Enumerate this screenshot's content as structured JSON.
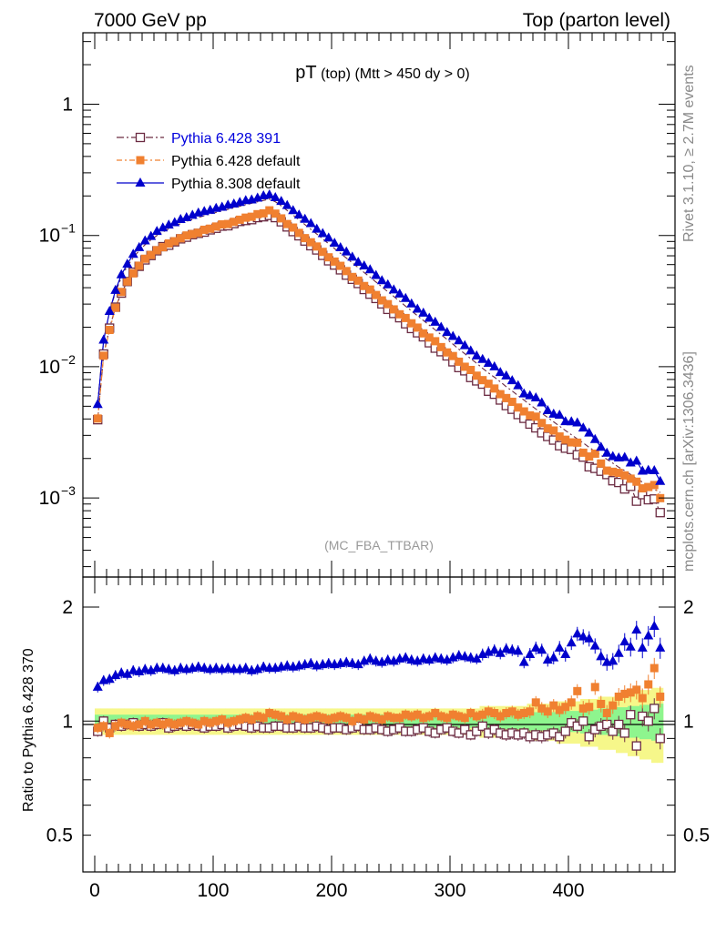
{
  "header": {
    "left": "7000 GeV pp",
    "right": "Top (parton level)",
    "side_rivet": "Rivet 3.1.10, ≥ 2.7M events",
    "side_mcplots": "mcplots.cern.ch [arXiv:1306.3436]"
  },
  "chart_data": [
    {
      "type": "line",
      "title_main": "pT",
      "title_sub": "(top)",
      "title_cut": "(Mtt > 450 dy > 0)",
      "watermark": "(MC_FBA_TTBAR)",
      "scale": "log",
      "xlim": [
        -10,
        490
      ],
      "ylim": [
        0.00025,
        3.5
      ],
      "yticks": [
        {
          "value": 1,
          "label": "1"
        },
        {
          "value": 0.1,
          "label": "10",
          "exp": "−1"
        },
        {
          "value": 0.01,
          "label": "10",
          "exp": "−2"
        },
        {
          "value": 0.001,
          "label": "10",
          "exp": "−3"
        }
      ],
      "legend": [
        {
          "name": "Pythia 6.428 391",
          "color": "#6b2b42",
          "text_color": "#0000dd",
          "marker": "open-square",
          "dash": "8,3,2,3"
        },
        {
          "name": "Pythia 6.428 default",
          "color": "#f08030",
          "text_color": "#000000",
          "marker": "filled-square",
          "dash": "6,3,2,3"
        },
        {
          "name": "Pythia 8.308 default",
          "color": "#0000cc",
          "text_color": "#000000",
          "marker": "filled-triangle",
          "dash": ""
        }
      ],
      "x": [
        2.5,
        7.5,
        12.5,
        17.5,
        22.5,
        27.5,
        32.5,
        37.5,
        42.5,
        47.5,
        52.5,
        57.5,
        62.5,
        67.5,
        72.5,
        77.5,
        82.5,
        87.5,
        92.5,
        97.5,
        102.5,
        107.5,
        112.5,
        117.5,
        122.5,
        127.5,
        132.5,
        137.5,
        142.5,
        147.5,
        152.5,
        157.5,
        162.5,
        167.5,
        172.5,
        177.5,
        182.5,
        187.5,
        192.5,
        197.5,
        202.5,
        207.5,
        212.5,
        217.5,
        222.5,
        227.5,
        232.5,
        237.5,
        242.5,
        247.5,
        252.5,
        257.5,
        262.5,
        267.5,
        272.5,
        277.5,
        282.5,
        287.5,
        292.5,
        297.5,
        302.5,
        307.5,
        312.5,
        317.5,
        322.5,
        327.5,
        332.5,
        337.5,
        342.5,
        347.5,
        352.5,
        357.5,
        362.5,
        367.5,
        372.5,
        377.5,
        382.5,
        387.5,
        392.5,
        397.5,
        402.5,
        407.5,
        412.5,
        417.5,
        422.5,
        427.5,
        432.5,
        437.5,
        442.5,
        447.5,
        452.5,
        457.5,
        462.5,
        467.5,
        472.5,
        477.5
      ],
      "reference_y": [
        0.0042,
        0.0125,
        0.0205,
        0.029,
        0.0375,
        0.0455,
        0.053,
        0.06,
        0.0665,
        0.0725,
        0.078,
        0.083,
        0.0878,
        0.0922,
        0.0962,
        0.1,
        0.1035,
        0.107,
        0.1105,
        0.1138,
        0.117,
        0.1202,
        0.1235,
        0.127,
        0.1305,
        0.134,
        0.1375,
        0.141,
        0.1445,
        0.148,
        0.141,
        0.131,
        0.121,
        0.1115,
        0.1025,
        0.0945,
        0.087,
        0.08,
        0.0735,
        0.0675,
        0.062,
        0.057,
        0.0525,
        0.0483,
        0.0444,
        0.0408,
        0.0376,
        0.0345,
        0.0317,
        0.0291,
        0.0268,
        0.0246,
        0.0226,
        0.0208,
        0.0191,
        0.0176,
        0.0162,
        0.0149,
        0.0137,
        0.0126,
        0.0116,
        0.0106,
        0.0098,
        0.009,
        0.0083,
        0.0076,
        0.007,
        0.0065,
        0.006,
        0.0055,
        0.0051,
        0.0047,
        0.00435,
        0.00402,
        0.00372,
        0.00345,
        0.0032,
        0.00297,
        0.00275,
        0.00255,
        0.00237,
        0.0022,
        0.00205,
        0.0019,
        0.00177,
        0.00165,
        0.00154,
        0.00144,
        0.00134,
        0.00126,
        0.00118,
        0.0011,
        0.00103,
        0.00097,
        0.00091,
        0.00086
      ],
      "series": [
        {
          "name": "Pythia 6.428 391",
          "ratio": [
            0.94,
            1.0,
            0.96,
            0.98,
            0.97,
            0.98,
            0.99,
            0.97,
            0.98,
            0.97,
            0.98,
            0.99,
            0.96,
            0.97,
            0.98,
            0.97,
            0.98,
            0.97,
            0.96,
            0.97,
            0.97,
            0.98,
            0.96,
            0.97,
            0.98,
            0.97,
            0.96,
            0.97,
            0.96,
            0.96,
            0.97,
            0.97,
            0.96,
            0.96,
            0.97,
            0.96,
            0.96,
            0.97,
            0.96,
            0.95,
            0.96,
            0.96,
            0.95,
            0.96,
            0.97,
            0.95,
            0.95,
            0.96,
            0.95,
            0.94,
            0.95,
            0.96,
            0.94,
            0.94,
            0.95,
            0.96,
            0.94,
            0.93,
            0.95,
            0.96,
            0.94,
            0.93,
            0.95,
            0.92,
            0.94,
            0.97,
            0.93,
            0.95,
            0.93,
            0.92,
            0.93,
            0.92,
            0.93,
            0.91,
            0.92,
            0.91,
            0.92,
            0.93,
            0.91,
            0.94,
            0.99,
            0.97,
            1.0,
            0.91,
            0.95,
            0.97,
            0.98,
            0.94,
            0.98,
            0.93,
            1.04,
            0.86,
            1.03,
            1.0,
            1.08,
            0.9
          ]
        },
        {
          "name": "Pythia 6.428 default",
          "ratio": [
            0.96,
            0.97,
            0.93,
            0.97,
            0.99,
            0.98,
            0.97,
            0.98,
            1.0,
            0.98,
            0.99,
            0.98,
            0.99,
            0.98,
            0.99,
            1.0,
            0.99,
            0.98,
            1.0,
            0.99,
            1.0,
            1.01,
            0.99,
            1.0,
            1.01,
            1.02,
            1.01,
            1.03,
            1.02,
            1.05,
            1.04,
            1.03,
            1.01,
            1.03,
            1.02,
            1.01,
            1.02,
            1.03,
            1.02,
            1.01,
            1.02,
            1.03,
            1.02,
            1.0,
            1.02,
            1.01,
            1.03,
            1.02,
            1.01,
            1.03,
            1.02,
            1.02,
            1.04,
            1.03,
            1.04,
            1.02,
            1.03,
            1.05,
            1.03,
            1.02,
            1.04,
            1.03,
            1.02,
            1.05,
            1.03,
            1.04,
            1.06,
            1.05,
            1.03,
            1.05,
            1.06,
            1.04,
            1.05,
            1.06,
            1.12,
            1.08,
            1.06,
            1.1,
            1.07,
            1.09,
            1.12,
            1.2,
            1.08,
            1.09,
            1.23,
            1.11,
            1.05,
            1.1,
            1.16,
            1.18,
            1.19,
            1.21,
            1.15,
            1.25,
            1.38,
            1.16
          ]
        },
        {
          "name": "Pythia 8.308 default",
          "ratio": [
            1.23,
            1.28,
            1.29,
            1.32,
            1.34,
            1.33,
            1.36,
            1.35,
            1.37,
            1.36,
            1.38,
            1.38,
            1.37,
            1.36,
            1.38,
            1.37,
            1.38,
            1.39,
            1.38,
            1.37,
            1.38,
            1.37,
            1.38,
            1.37,
            1.37,
            1.38,
            1.36,
            1.37,
            1.39,
            1.38,
            1.38,
            1.39,
            1.4,
            1.39,
            1.4,
            1.41,
            1.42,
            1.4,
            1.41,
            1.42,
            1.41,
            1.42,
            1.43,
            1.42,
            1.41,
            1.44,
            1.46,
            1.44,
            1.43,
            1.45,
            1.44,
            1.46,
            1.47,
            1.45,
            1.44,
            1.46,
            1.45,
            1.47,
            1.46,
            1.45,
            1.47,
            1.49,
            1.48,
            1.47,
            1.46,
            1.5,
            1.52,
            1.54,
            1.51,
            1.55,
            1.54,
            1.53,
            1.43,
            1.5,
            1.56,
            1.54,
            1.45,
            1.47,
            1.56,
            1.5,
            1.61,
            1.7,
            1.67,
            1.65,
            1.58,
            1.48,
            1.43,
            1.44,
            1.51,
            1.62,
            1.57,
            1.74,
            1.56,
            1.68,
            1.78,
            1.56
          ]
        }
      ],
      "band_half_width": [
        0.05,
        0.05,
        0.05,
        0.05,
        0.05,
        0.05,
        0.05,
        0.05,
        0.05,
        0.05,
        0.05,
        0.05,
        0.05,
        0.05,
        0.05,
        0.05,
        0.05,
        0.05,
        0.05,
        0.05,
        0.05,
        0.05,
        0.05,
        0.05,
        0.05,
        0.05,
        0.05,
        0.05,
        0.05,
        0.05,
        0.05,
        0.05,
        0.05,
        0.05,
        0.05,
        0.05,
        0.05,
        0.05,
        0.05,
        0.05,
        0.05,
        0.05,
        0.05,
        0.05,
        0.05,
        0.05,
        0.05,
        0.05,
        0.05,
        0.05,
        0.05,
        0.05,
        0.05,
        0.05,
        0.05,
        0.05,
        0.05,
        0.05,
        0.05,
        0.05,
        0.05,
        0.05,
        0.05,
        0.05,
        0.05,
        0.06,
        0.06,
        0.06,
        0.06,
        0.06,
        0.06,
        0.06,
        0.06,
        0.07,
        0.07,
        0.07,
        0.07,
        0.07,
        0.08,
        0.08,
        0.08,
        0.08,
        0.09,
        0.09,
        0.09,
        0.1,
        0.1,
        0.1,
        0.11,
        0.11,
        0.12,
        0.12,
        0.13,
        0.13,
        0.14,
        0.14
      ]
    },
    {
      "type": "line",
      "ylabel": "Ratio to Pythia 6.428 370",
      "scale": "log",
      "xlim": [
        -10,
        490
      ],
      "ylim": [
        0.4,
        2.4
      ],
      "xticks": [
        0,
        100,
        200,
        300,
        400
      ],
      "yticks": [
        {
          "value": 0.5,
          "label": "0.5"
        },
        {
          "value": 1,
          "label": "1"
        },
        {
          "value": 2,
          "label": "2"
        }
      ],
      "band_colors": {
        "inner": "#8ef58e",
        "outer": "#f6f78a"
      }
    }
  ]
}
